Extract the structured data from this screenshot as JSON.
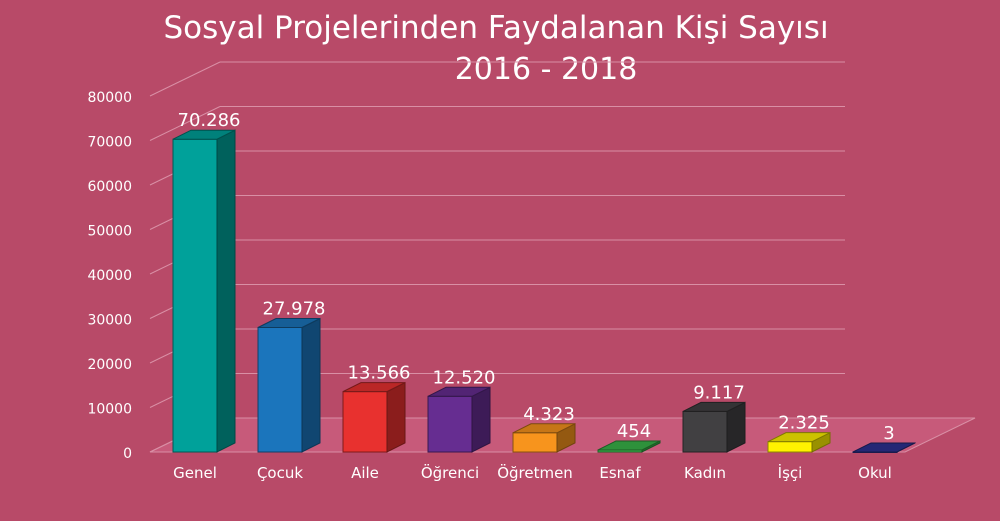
{
  "colors": {
    "background": "#b84a68",
    "floor": "#c75a7a",
    "text": "#ffffff",
    "gridline": "#d98fa5"
  },
  "chart_data": {
    "type": "bar",
    "title": "Sosyal Projelerinden Faydalanan Kişi Sayısı",
    "subtitle": "2016 - 2018",
    "xlabel": "",
    "ylabel": "",
    "ylim": [
      0,
      80000
    ],
    "yticks": [
      "0",
      "10000",
      "20000",
      "30000",
      "40000",
      "50000",
      "60000",
      "70000",
      "80000"
    ],
    "grid": true,
    "legend": "none",
    "categories": [
      "Genel",
      "Çocuk",
      "Aile",
      "Öğrenci",
      "Öğretmen",
      "Esnaf",
      "Kadın",
      "İşçi",
      "Okul"
    ],
    "values": [
      70286,
      27978,
      13566,
      12520,
      4323,
      454,
      9117,
      2325,
      3
    ],
    "data_labels": [
      "70.286",
      "27.978",
      "13.566",
      "12.520",
      "4.323",
      "454",
      "9.117",
      "2.325",
      "3"
    ],
    "bar_colors": [
      "#00a19a",
      "#1b75bc",
      "#e8312f",
      "#662d91",
      "#f7941d",
      "#39b54a",
      "#414042",
      "#fff200",
      "#2e3192"
    ]
  }
}
